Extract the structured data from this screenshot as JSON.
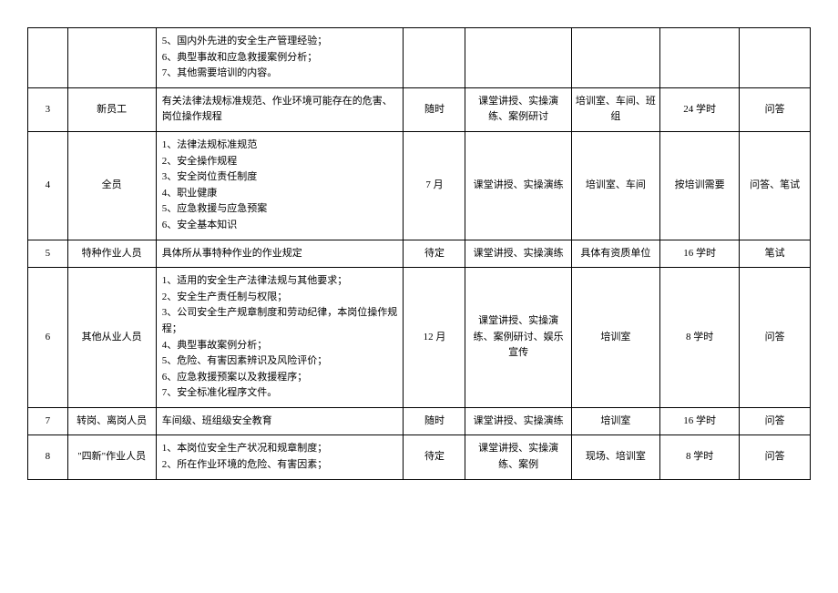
{
  "table": {
    "colWidths": [
      "4.5%",
      "10%",
      "28%",
      "7%",
      "12%",
      "10%",
      "9%",
      "8%"
    ],
    "rows": [
      {
        "idx": "",
        "person": "",
        "content": "5、国内外先进的安全生产管理经验；\n6、典型事故和应急救援案例分析；\n7、其他需要培训的内容。",
        "time": "",
        "method": "",
        "place": "",
        "hours": "",
        "assess": ""
      },
      {
        "idx": "3",
        "person": "新员工",
        "content": "有关法律法规标准规范、作业环境可能存在的危害、岗位操作规程",
        "time": "随时",
        "method": "课堂讲授、实操演练、案例研讨",
        "place": "培训室、车间、班组",
        "hours": "24 学时",
        "assess": "问答"
      },
      {
        "idx": "4",
        "person": "全员",
        "content": "1、法律法规标准规范\n2、安全操作规程\n3、安全岗位责任制度\n4、职业健康\n5、应急救援与应急预案\n6、安全基本知识",
        "time": "7 月",
        "method": "课堂讲授、实操演练",
        "place": "培训室、车间",
        "hours": "按培训需要",
        "assess": "问答、笔试"
      },
      {
        "idx": "5",
        "person": "特种作业人员",
        "content": "具体所从事特种作业的作业规定",
        "time": "待定",
        "method": "课堂讲授、实操演练",
        "place": "具体有资质单位",
        "hours": "16 学时",
        "assess": "笔试"
      },
      {
        "idx": "6",
        "person": "其他从业人员",
        "content": "1、适用的安全生产法律法规与其他要求；\n2、安全生产责任制与权限；\n3、公司安全生产规章制度和劳动纪律，本岗位操作规程；\n4、典型事故案例分析；\n5、危险、有害因素辨识及风险评价；\n6、应急救援预案以及救援程序；\n7、安全标准化程序文件。",
        "time": "12 月",
        "method": "课堂讲授、实操演练、案例研讨、娱乐宣传",
        "place": "培训室",
        "hours": "8 学时",
        "assess": "问答"
      },
      {
        "idx": "7",
        "person": "转岗、离岗人员",
        "content": "车间级、班组级安全教育",
        "time": "随时",
        "method": "课堂讲授、实操演练",
        "place": "培训室",
        "hours": "16 学时",
        "assess": "问答"
      },
      {
        "idx": "8",
        "person": "\"四新\"作业人员",
        "content": "1、本岗位安全生产状况和规章制度；\n2、所在作业环境的危险、有害因素；",
        "time": "待定",
        "method": "课堂讲授、实操演练、案例",
        "place": "现场、培训室",
        "hours": "8 学时",
        "assess": "问答"
      }
    ]
  }
}
